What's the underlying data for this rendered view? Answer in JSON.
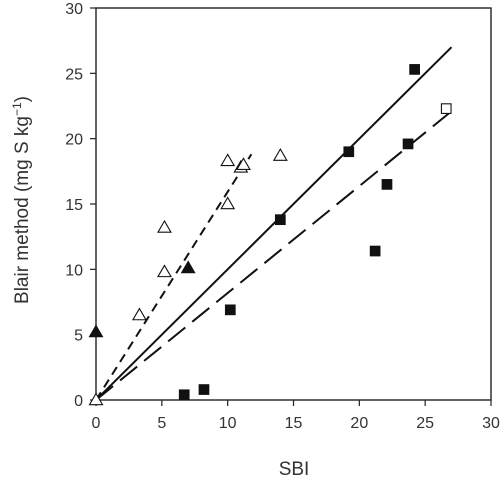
{
  "chart_data": {
    "type": "scatter",
    "xlabel": "SBI",
    "ylabel_main": "Blair method (mg S kg",
    "ylabel_sup": "−1",
    "ylabel_end": ")",
    "xlim": [
      0,
      30
    ],
    "ylim": [
      0,
      30
    ],
    "xticks": [
      "0",
      "5",
      "10",
      "15",
      "20",
      "25",
      "30"
    ],
    "yticks": [
      "0",
      "5",
      "10",
      "15",
      "20",
      "25",
      "30"
    ],
    "grid": false,
    "series": [
      {
        "marker": "open-triangle",
        "points": [
          [
            0,
            0
          ],
          [
            3.3,
            6.5
          ],
          [
            5.2,
            9.8
          ],
          [
            5.2,
            13.2
          ],
          [
            10.0,
            15.0
          ],
          [
            10.0,
            18.3
          ],
          [
            11.0,
            17.8
          ],
          [
            11.2,
            18.0
          ],
          [
            14.0,
            18.7
          ]
        ]
      },
      {
        "marker": "filled-triangle",
        "points": [
          [
            0,
            5.2
          ],
          [
            7.0,
            10.1
          ]
        ]
      },
      {
        "marker": "filled-square",
        "points": [
          [
            6.7,
            0.4
          ],
          [
            8.2,
            0.8
          ],
          [
            10.2,
            6.9
          ],
          [
            14.0,
            13.8
          ],
          [
            19.2,
            19.0
          ],
          [
            21.2,
            11.4
          ],
          [
            22.1,
            16.5
          ],
          [
            23.7,
            19.6
          ],
          [
            24.2,
            25.3
          ]
        ]
      },
      {
        "marker": "open-square",
        "points": [
          [
            26.6,
            22.3
          ]
        ]
      }
    ],
    "lines": [
      {
        "style": "solid",
        "from": [
          0,
          0
        ],
        "to": [
          27.0,
          27.0
        ]
      },
      {
        "style": "long-dash",
        "from": [
          0,
          0
        ],
        "to": [
          27.0,
          22.1
        ]
      },
      {
        "style": "short-dash",
        "from": [
          0,
          0
        ],
        "to": [
          11.8,
          18.8
        ]
      }
    ]
  }
}
